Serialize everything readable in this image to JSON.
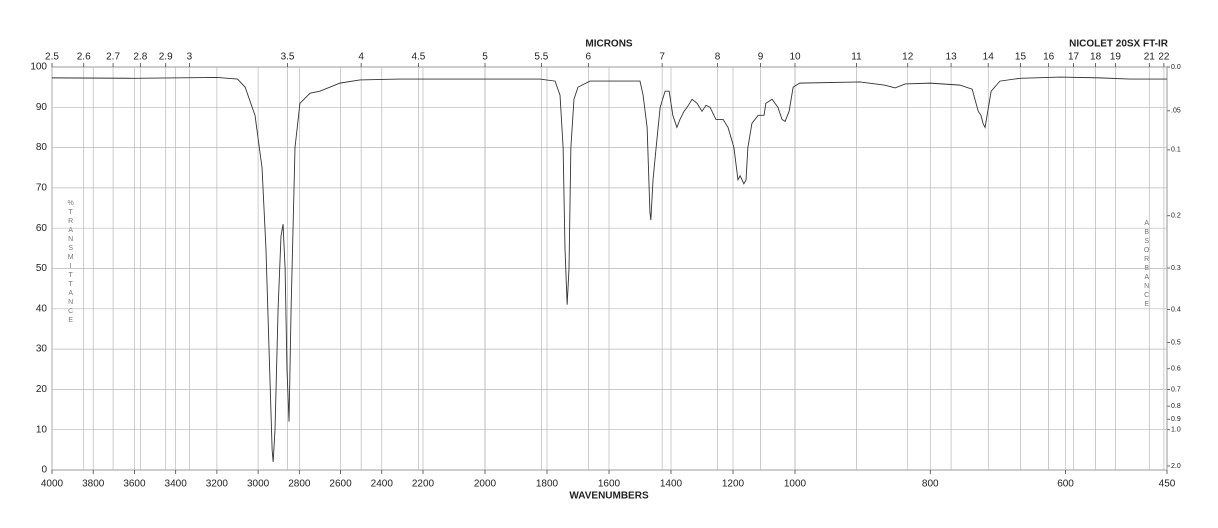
{
  "chart_data": {
    "type": "line",
    "title": "MICRONS",
    "subtitle": "NICOLET 20SX FT-IR",
    "x_label": "WAVENUMBERS",
    "y_label": "%TRANSMITTANCE",
    "y2_label": "ABSORBANCE",
    "color": "#333333",
    "grid": true,
    "x_scale_breaks": [
      2200,
      1000
    ],
    "xlim": [
      4000,
      450
    ],
    "xticks": [
      4000,
      3800,
      3600,
      3400,
      3200,
      3000,
      2800,
      2600,
      2400,
      2200,
      2000,
      1800,
      1600,
      1400,
      1200,
      1000,
      800,
      600,
      450
    ],
    "x2ticks": [
      2.5,
      2.6,
      2.7,
      2.8,
      2.9,
      3,
      3.5,
      4,
      4.5,
      5,
      5.5,
      6,
      7,
      8,
      9,
      10,
      11,
      12,
      13,
      14,
      15,
      16,
      17,
      18,
      19,
      21,
      22
    ],
    "ylim": [
      0,
      100
    ],
    "yticks": [
      0,
      10,
      20,
      30,
      40,
      50,
      60,
      70,
      80,
      90,
      100
    ],
    "y2ticks": [
      {
        "value": 0.0,
        "label": "0.0"
      },
      {
        "value": 0.05,
        "label": ".05"
      },
      0.1,
      0.2,
      0.3,
      0.4,
      0.5,
      0.6,
      0.7,
      0.8,
      0.9,
      {
        "value": 1.0,
        "label": "1.0"
      },
      {
        "value": 2.0,
        "label": "2.0"
      }
    ],
    "x": [
      4000,
      3600,
      3200,
      3100,
      3063,
      3015,
      2981,
      2962,
      2947,
      2932,
      2927,
      2918,
      2903,
      2889,
      2879,
      2869,
      2860,
      2850,
      2840,
      2821,
      2797,
      2748,
      2700,
      2603,
      2506,
      2311,
      2000,
      1823,
      1774,
      1758,
      1748,
      1742,
      1735,
      1729,
      1723,
      1713,
      1700,
      1661,
      1500,
      1490,
      1477,
      1468,
      1465,
      1458,
      1448,
      1435,
      1419,
      1406,
      1394,
      1381,
      1371,
      1358,
      1348,
      1332,
      1316,
      1300,
      1287,
      1274,
      1255,
      1232,
      1216,
      1197,
      1184,
      1177,
      1171,
      1165,
      1158,
      1152,
      1139,
      1119,
      1100,
      1094,
      1074,
      1055,
      1042,
      1032,
      1019,
      1006,
      993,
      904,
      867,
      852,
      837,
      800,
      756,
      738,
      734,
      729,
      725,
      722,
      719,
      716,
      710,
      697,
      667,
      608,
      549,
      505,
      450
    ],
    "values": [
      97.3,
      97.2,
      97.4,
      97,
      95,
      88,
      75,
      55,
      30,
      5,
      2,
      10,
      40,
      58,
      61,
      50,
      25,
      12,
      40,
      80,
      91,
      93.5,
      94,
      96,
      96.8,
      97,
      97,
      97,
      96.5,
      93,
      80,
      55,
      41,
      50,
      80,
      92,
      95,
      96.5,
      96.5,
      93,
      85,
      64,
      62,
      72,
      80,
      90,
      94,
      94,
      88,
      85,
      87,
      89,
      90,
      92,
      91,
      89,
      90.5,
      90,
      87,
      87,
      85,
      80,
      72,
      73,
      72,
      71,
      72,
      80,
      86,
      88,
      88,
      91,
      92,
      90,
      87,
      86.5,
      89,
      95,
      96,
      96.3,
      95.5,
      94.8,
      95.8,
      96,
      95.5,
      94.5,
      92,
      89,
      88,
      86,
      85,
      88,
      94,
      96.5,
      97.2,
      97.5,
      97.3,
      97,
      97
    ]
  }
}
